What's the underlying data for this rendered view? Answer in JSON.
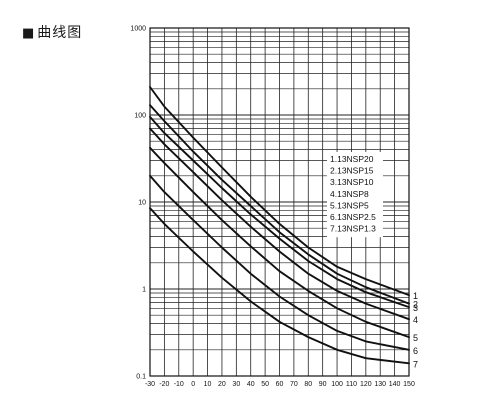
{
  "heading": {
    "marker": "■",
    "text": "曲线图"
  },
  "chart_data": {
    "type": "line",
    "y_scale": "log",
    "ylim": [
      0.1,
      1000
    ],
    "xlim": [
      -30,
      150
    ],
    "y_ticks": [
      "1000",
      "100",
      "10",
      "1",
      "0.1"
    ],
    "y_tick_values": [
      1000,
      100,
      10,
      1,
      0.1
    ],
    "x_ticks": [
      "-30",
      "-20",
      "-10",
      "0",
      "10",
      "20",
      "30",
      "40",
      "50",
      "60",
      "70",
      "80",
      "90",
      "100",
      "110",
      "120",
      "130",
      "140",
      "150"
    ],
    "x_tick_values": [
      -30,
      -20,
      -10,
      0,
      10,
      20,
      30,
      40,
      50,
      60,
      70,
      80,
      90,
      100,
      110,
      120,
      130,
      140,
      150
    ],
    "grid": true,
    "legend_position": "right, inside plot",
    "legend_entries": [
      "1.13NSP20",
      "2.13NSP15",
      "3.13NSP10",
      "4.13NSP8",
      "5.13NSP5",
      "6.13NSP2.5",
      "7.13NSP1.3"
    ],
    "series": [
      {
        "label": "1",
        "x": [
          -30,
          -20,
          0,
          20,
          40,
          60,
          80,
          100,
          120,
          150
        ],
        "y": [
          210,
          125,
          55,
          25,
          11.5,
          5.6,
          3,
          1.8,
          1.3,
          0.85
        ]
      },
      {
        "label": "2",
        "x": [
          -30,
          -20,
          0,
          20,
          40,
          60,
          80,
          100,
          120,
          150
        ],
        "y": [
          130,
          85,
          38,
          18,
          9,
          4.5,
          2.5,
          1.5,
          1.05,
          0.68
        ]
      },
      {
        "label": "3",
        "x": [
          -30,
          -20,
          0,
          20,
          40,
          60,
          80,
          100,
          120,
          150
        ],
        "y": [
          95,
          62,
          30,
          14.5,
          7.2,
          3.8,
          2.1,
          1.3,
          0.92,
          0.62
        ]
      },
      {
        "label": "4",
        "x": [
          -30,
          -20,
          0,
          20,
          40,
          60,
          80,
          100,
          120,
          150
        ],
        "y": [
          70,
          46,
          22,
          10.5,
          5.2,
          2.7,
          1.5,
          0.95,
          0.68,
          0.45
        ]
      },
      {
        "label": "5",
        "x": [
          -30,
          -20,
          0,
          20,
          40,
          60,
          80,
          100,
          120,
          150
        ],
        "y": [
          42,
          28,
          13,
          6.2,
          3.1,
          1.6,
          0.95,
          0.6,
          0.42,
          0.28
        ]
      },
      {
        "label": "6",
        "x": [
          -30,
          -20,
          0,
          20,
          40,
          60,
          80,
          100,
          120,
          150
        ],
        "y": [
          20,
          13,
          6.2,
          3,
          1.5,
          0.82,
          0.5,
          0.33,
          0.25,
          0.2
        ]
      },
      {
        "label": "7",
        "x": [
          -30,
          -20,
          0,
          20,
          40,
          60,
          80,
          100,
          120,
          150
        ],
        "y": [
          8.5,
          5.6,
          2.7,
          1.35,
          0.72,
          0.42,
          0.28,
          0.2,
          0.16,
          0.14
        ]
      }
    ]
  }
}
